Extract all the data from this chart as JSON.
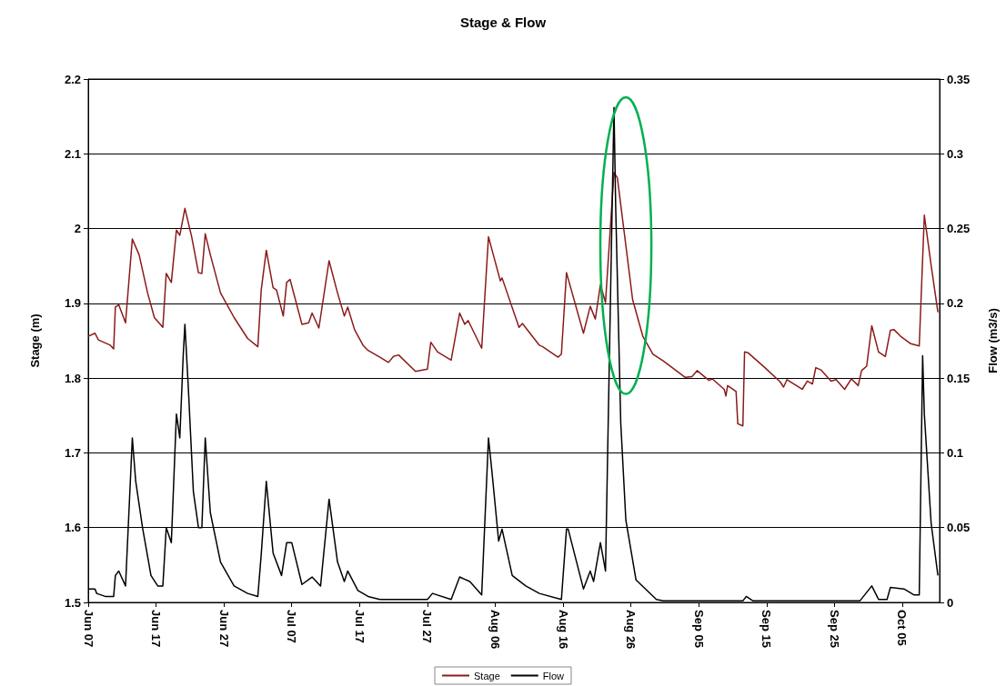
{
  "chart_data": {
    "type": "line",
    "title": "Stage & Flow",
    "ylabel": "Stage (m)",
    "y2label": "Flow (m3/s)",
    "xlim": [
      "--06-07",
      "--10-10T12:00"
    ],
    "xticks": [
      {
        "value": "--06-07",
        "label": "Jun 07"
      },
      {
        "value": "--06-17",
        "label": "Jun 17"
      },
      {
        "value": "--06-27",
        "label": "Jun 27"
      },
      {
        "value": "--07-07",
        "label": "Jul 07"
      },
      {
        "value": "--07-17",
        "label": "Jul 17"
      },
      {
        "value": "--07-27",
        "label": "Jul 27"
      },
      {
        "value": "--08-06",
        "label": "Aug 06"
      },
      {
        "value": "--08-16",
        "label": "Aug 16"
      },
      {
        "value": "--08-26",
        "label": "Aug 26"
      },
      {
        "value": "--09-05",
        "label": "Sep 05"
      },
      {
        "value": "--09-15",
        "label": "Sep 15"
      },
      {
        "value": "--09-25",
        "label": "Sep 25"
      },
      {
        "value": "--10-05",
        "label": "Oct 05"
      }
    ],
    "ylim": [
      1.5,
      2.2
    ],
    "yticks": [
      1.5,
      1.6,
      1.7,
      1.8,
      1.9,
      2,
      2.1,
      2.2
    ],
    "y2lim": [
      0,
      0.35
    ],
    "y2ticks": [
      0,
      0.05,
      0.1,
      0.15,
      0.2,
      0.25,
      0.3,
      0.35
    ],
    "grid": "y",
    "legend": "bottom",
    "line_style": "solid",
    "series": [
      {
        "name": "Stage",
        "color": "#8b1a1a",
        "x": [
          "--06-07T00:00",
          "--06-08T00:00",
          "--06-08T12:00",
          "--06-10T06:00",
          "--06-10T18:00",
          "--06-11T00:00",
          "--06-11T12:00",
          "--06-12T12:00",
          "--06-13T12:00",
          "--06-14T12:00",
          "--06-15T18:00",
          "--06-16T18:00",
          "--06-18T00:00",
          "--06-18T12:00",
          "--06-19T06:00",
          "--06-20T00:00",
          "--06-20T12:00",
          "--06-21T06:00",
          "--06-22T06:00",
          "--06-23T06:00",
          "--06-23T18:00",
          "--06-24T06:00",
          "--06-25T00:00",
          "--06-26T12:00",
          "--06-28T12:00",
          "--06-30T12:00",
          "--07-02T00:00",
          "--07-02T12:00",
          "--07-03T06:00",
          "--07-04T06:00",
          "--07-04T18:00",
          "--07-05T18:00",
          "--07-06T06:00",
          "--07-06T18:00",
          "--07-08T12:00",
          "--07-09T12:00",
          "--07-10T00:00",
          "--07-11T00:00",
          "--07-12T12:00",
          "--07-13T18:00",
          "--07-14T18:00",
          "--07-15T06:00",
          "--07-16T06:00",
          "--07-17T12:00",
          "--07-18T06:00",
          "--07-20T00:00",
          "--07-21T06:00",
          "--07-22T00:00",
          "--07-22T18:00",
          "--07-25T06:00",
          "--07-27T00:00",
          "--07-27T12:00",
          "--07-28T12:00",
          "--07-30T12:00",
          "--07-31T18:00",
          "--08-01T12:00",
          "--08-02T00:00",
          "--08-04T00:00",
          "--08-05T00:00",
          "--08-06T18:00",
          "--08-07T00:00",
          "--08-09T12:00",
          "--08-10T00:00",
          "--08-12T12:00",
          "--08-13T00:00",
          "--08-15T06:00",
          "--08-15T18:00",
          "--08-16T12:00",
          "--08-19T00:00",
          "--08-20T00:00",
          "--08-20T18:00",
          "--08-21T12:00",
          "--08-22T06:00",
          "--08-23T12:00",
          "--08-24T00:00",
          "--08-26T06:00",
          "--08-27T18:00",
          "--08-29T06:00",
          "--08-30T18:00",
          "--09-03T00:00",
          "--09-04T00:00",
          "--09-04T18:00",
          "--09-06T12:00",
          "--09-07T00:00",
          "--09-08T18:00",
          "--09-09T00:00",
          "--09-09T06:00",
          "--09-10T12:00",
          "--09-10T18:00",
          "--09-11T12:00",
          "--09-11T18:00",
          "--09-12T06:00",
          "--09-14T18:00",
          "--09-17T00:00",
          "--09-17T12:00",
          "--09-18T00:00",
          "--09-20T06:00",
          "--09-21T00:00",
          "--09-21T18:00",
          "--09-22T06:00",
          "--09-23T00:00",
          "--09-24T12:00",
          "--09-25T06:00",
          "--09-26T12:00",
          "--09-27T12:00",
          "--09-28T12:00",
          "--09-29T00:00",
          "--09-29T18:00",
          "--09-30T12:00",
          "--10-01T12:00",
          "--10-02T12:00",
          "--10-03T06:00",
          "--10-03T18:00",
          "--10-04T18:00",
          "--10-06T06:00",
          "--10-07T12:00",
          "--10-08T06:00",
          "--10-09T06:00",
          "--10-10T06:00"
        ],
        "values": [
          1.856,
          1.86,
          1.851,
          1.844,
          1.839,
          1.895,
          1.898,
          1.874,
          1.986,
          1.965,
          1.914,
          1.881,
          1.868,
          1.94,
          1.928,
          1.998,
          1.991,
          2.027,
          1.989,
          1.941,
          1.94,
          1.993,
          1.965,
          1.914,
          1.881,
          1.853,
          1.842,
          1.918,
          1.971,
          1.921,
          1.918,
          1.883,
          1.928,
          1.932,
          1.872,
          1.874,
          1.887,
          1.867,
          1.957,
          1.914,
          1.883,
          1.895,
          1.865,
          1.844,
          1.837,
          1.828,
          1.821,
          1.829,
          1.831,
          1.809,
          1.812,
          1.848,
          1.835,
          1.824,
          1.887,
          1.872,
          1.877,
          1.84,
          1.989,
          1.93,
          1.934,
          1.868,
          1.873,
          1.844,
          1.842,
          1.828,
          1.832,
          1.941,
          1.86,
          1.896,
          1.879,
          1.925,
          1.901,
          2.075,
          2.068,
          1.905,
          1.856,
          1.832,
          1.823,
          1.801,
          1.802,
          1.81,
          1.797,
          1.799,
          1.785,
          1.776,
          1.79,
          1.782,
          1.739,
          1.736,
          1.835,
          1.834,
          1.814,
          1.795,
          1.788,
          1.798,
          1.785,
          1.796,
          1.792,
          1.814,
          1.811,
          1.796,
          1.798,
          1.785,
          1.799,
          1.79,
          1.81,
          1.816,
          1.87,
          1.835,
          1.829,
          1.864,
          1.865,
          1.856,
          1.846,
          1.843,
          2.018,
          1.951,
          1.888
        ]
      },
      {
        "name": "Flow",
        "color": "#000000",
        "axis": "y2",
        "x": [
          "--06-07T00:00",
          "--06-08T00:00",
          "--06-08T06:00",
          "--06-09T12:00",
          "--06-10T18:00",
          "--06-11T00:00",
          "--06-11T12:00",
          "--06-12T12:00",
          "--06-13T12:00",
          "--06-14T00:00",
          "--06-15T00:00",
          "--06-16T06:00",
          "--06-17T06:00",
          "--06-18T00:00",
          "--06-18T12:00",
          "--06-19T06:00",
          "--06-20T00:00",
          "--06-20T12:00",
          "--06-21T00:00",
          "--06-21T06:00",
          "--06-21T18:00",
          "--06-22T12:00",
          "--06-23T06:00",
          "--06-23T18:00",
          "--06-24T06:00",
          "--06-25T00:00",
          "--06-26T12:00",
          "--06-28T12:00",
          "--06-30T12:00",
          "--07-02T00:00",
          "--07-02T12:00",
          "--07-03T06:00",
          "--07-04T06:00",
          "--07-05T12:00",
          "--07-06T06:00",
          "--07-07T00:00",
          "--07-08T12:00",
          "--07-10T00:00",
          "--07-11T06:00",
          "--07-12T12:00",
          "--07-13T18:00",
          "--07-14T18:00",
          "--07-15T06:00",
          "--07-16T18:00",
          "--07-18T06:00",
          "--07-20T00:00",
          "--07-27T00:00",
          "--07-27T18:00",
          "--07-30T12:00",
          "--07-31T18:00",
          "--08-02T06:00",
          "--08-04T00:00",
          "--08-05T00:00",
          "--08-05T12:00",
          "--08-06T12:00",
          "--08-07T00:00",
          "--08-08T12:00",
          "--08-10T12:00",
          "--08-12T12:00",
          "--08-15T18:00",
          "--08-16T12:00",
          "--08-16T18:00",
          "--08-19T00:00",
          "--08-20T00:00",
          "--08-20T12:00",
          "--08-21T12:00",
          "--08-22T06:00",
          "--08-23T12:00",
          "--08-23T18:00",
          "--08-24T12:00",
          "--08-25T06:00",
          "--08-26T18:00",
          "--08-29T18:00",
          "--08-30T18:00",
          "--09-11T12:00",
          "--09-12T00:00",
          "--09-13T00:00",
          "--09-28T18:00",
          "--09-30T12:00",
          "--10-01T12:00",
          "--10-02T18:00",
          "--10-03T06:00",
          "--10-05T06:00",
          "--10-06T18:00",
          "--10-07T12:00",
          "--10-08T00:00",
          "--10-08T06:00",
          "--10-09T06:00",
          "--10-10T06:00"
        ],
        "values": [
          0.009,
          0.009,
          0.006,
          0.004,
          0.004,
          0.018,
          0.021,
          0.011,
          0.11,
          0.081,
          0.05,
          0.018,
          0.011,
          0.011,
          0.05,
          0.04,
          0.126,
          0.11,
          0.165,
          0.186,
          0.144,
          0.074,
          0.05,
          0.05,
          0.11,
          0.06,
          0.027,
          0.011,
          0.006,
          0.004,
          0.032,
          0.081,
          0.033,
          0.018,
          0.04,
          0.04,
          0.012,
          0.017,
          0.011,
          0.069,
          0.027,
          0.014,
          0.021,
          0.008,
          0.004,
          0.002,
          0.002,
          0.006,
          0.002,
          0.017,
          0.014,
          0.005,
          0.11,
          0.088,
          0.041,
          0.049,
          0.018,
          0.011,
          0.006,
          0.002,
          0.049,
          0.049,
          0.009,
          0.021,
          0.014,
          0.04,
          0.021,
          0.331,
          0.265,
          0.12,
          0.055,
          0.015,
          0.002,
          0.001,
          0.001,
          0.004,
          0.001,
          0.001,
          0.011,
          0.002,
          0.002,
          0.01,
          0.009,
          0.005,
          0.005,
          0.165,
          0.126,
          0.053,
          0.018
        ]
      }
    ]
  }
}
